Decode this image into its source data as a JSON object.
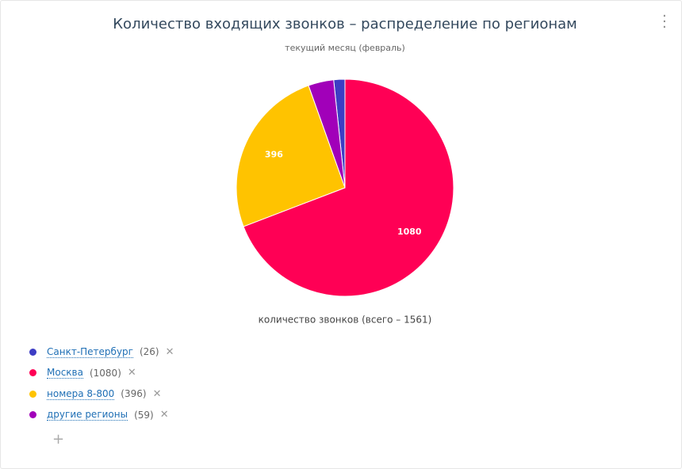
{
  "chart_data": {
    "type": "pie",
    "title": "Количество входящих звонков – распределение по регионам",
    "subtitle": "текущий месяц (февраль)",
    "x_label": "количество звонков  (всего – 1561)",
    "categories": [
      "Санкт-Петербург",
      "Москва",
      "номера 8-800",
      "другие регионы"
    ],
    "values": [
      26,
      1080,
      396,
      59
    ],
    "value_labels": [
      "(26)",
      "(1080)",
      "(396)",
      "(59)"
    ],
    "colors": [
      "#3d3dc4",
      "#ff0055",
      "#ffc300",
      "#a100b9"
    ],
    "legend": "bottom-left"
  }
}
